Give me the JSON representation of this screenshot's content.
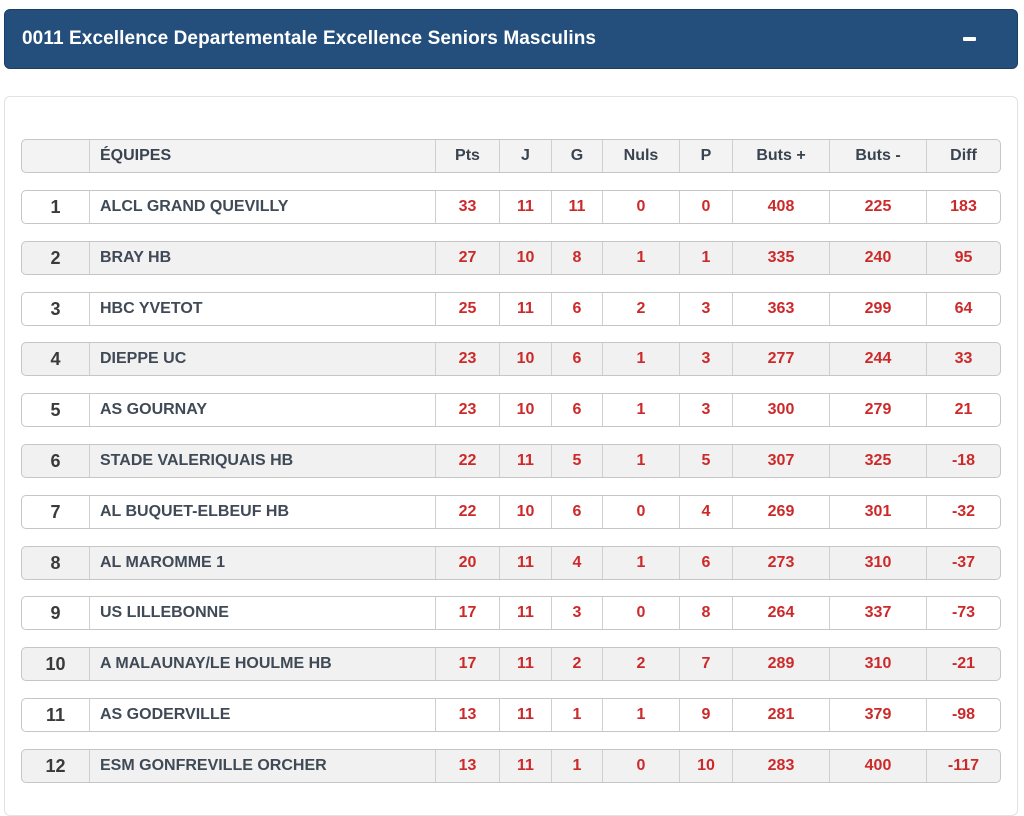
{
  "panel": {
    "title": "0011 Excellence Departementale Excellence Seniors Masculins",
    "collapse_symbol": "−",
    "header_color": "#244f7c"
  },
  "table": {
    "headers": {
      "rank": "",
      "team": "ÉQUIPES",
      "pts": "Pts",
      "j": "J",
      "g": "G",
      "nuls": "Nuls",
      "p": "P",
      "buts_plus": "Buts +",
      "buts_minus": "Buts -",
      "diff": "Diff"
    },
    "rows": [
      {
        "rank": "1",
        "team": "ALCL GRAND QUEVILLY",
        "pts": "33",
        "j": "11",
        "g": "11",
        "nuls": "0",
        "p": "0",
        "buts_plus": "408",
        "buts_minus": "225",
        "diff": "183"
      },
      {
        "rank": "2",
        "team": "BRAY HB",
        "pts": "27",
        "j": "10",
        "g": "8",
        "nuls": "1",
        "p": "1",
        "buts_plus": "335",
        "buts_minus": "240",
        "diff": "95"
      },
      {
        "rank": "3",
        "team": "HBC YVETOT",
        "pts": "25",
        "j": "11",
        "g": "6",
        "nuls": "2",
        "p": "3",
        "buts_plus": "363",
        "buts_minus": "299",
        "diff": "64"
      },
      {
        "rank": "4",
        "team": "DIEPPE UC",
        "pts": "23",
        "j": "10",
        "g": "6",
        "nuls": "1",
        "p": "3",
        "buts_plus": "277",
        "buts_minus": "244",
        "diff": "33"
      },
      {
        "rank": "5",
        "team": "AS GOURNAY",
        "pts": "23",
        "j": "10",
        "g": "6",
        "nuls": "1",
        "p": "3",
        "buts_plus": "300",
        "buts_minus": "279",
        "diff": "21"
      },
      {
        "rank": "6",
        "team": "STADE VALERIQUAIS HB",
        "pts": "22",
        "j": "11",
        "g": "5",
        "nuls": "1",
        "p": "5",
        "buts_plus": "307",
        "buts_minus": "325",
        "diff": "-18"
      },
      {
        "rank": "7",
        "team": "AL BUQUET-ELBEUF HB",
        "pts": "22",
        "j": "10",
        "g": "6",
        "nuls": "0",
        "p": "4",
        "buts_plus": "269",
        "buts_minus": "301",
        "diff": "-32"
      },
      {
        "rank": "8",
        "team": "AL MAROMME 1",
        "pts": "20",
        "j": "11",
        "g": "4",
        "nuls": "1",
        "p": "6",
        "buts_plus": "273",
        "buts_minus": "310",
        "diff": "-37"
      },
      {
        "rank": "9",
        "team": "US LILLEBONNE",
        "pts": "17",
        "j": "11",
        "g": "3",
        "nuls": "0",
        "p": "8",
        "buts_plus": "264",
        "buts_minus": "337",
        "diff": "-73"
      },
      {
        "rank": "10",
        "team": "A MALAUNAY/LE HOULME HB",
        "pts": "17",
        "j": "11",
        "g": "2",
        "nuls": "2",
        "p": "7",
        "buts_plus": "289",
        "buts_minus": "310",
        "diff": "-21"
      },
      {
        "rank": "11",
        "team": "AS GODERVILLE",
        "pts": "13",
        "j": "11",
        "g": "1",
        "nuls": "1",
        "p": "9",
        "buts_plus": "281",
        "buts_minus": "379",
        "diff": "-98"
      },
      {
        "rank": "12",
        "team": "ESM GONFREVILLE ORCHER",
        "pts": "13",
        "j": "11",
        "g": "1",
        "nuls": "0",
        "p": "10",
        "buts_plus": "283",
        "buts_minus": "400",
        "diff": "-117"
      }
    ]
  }
}
